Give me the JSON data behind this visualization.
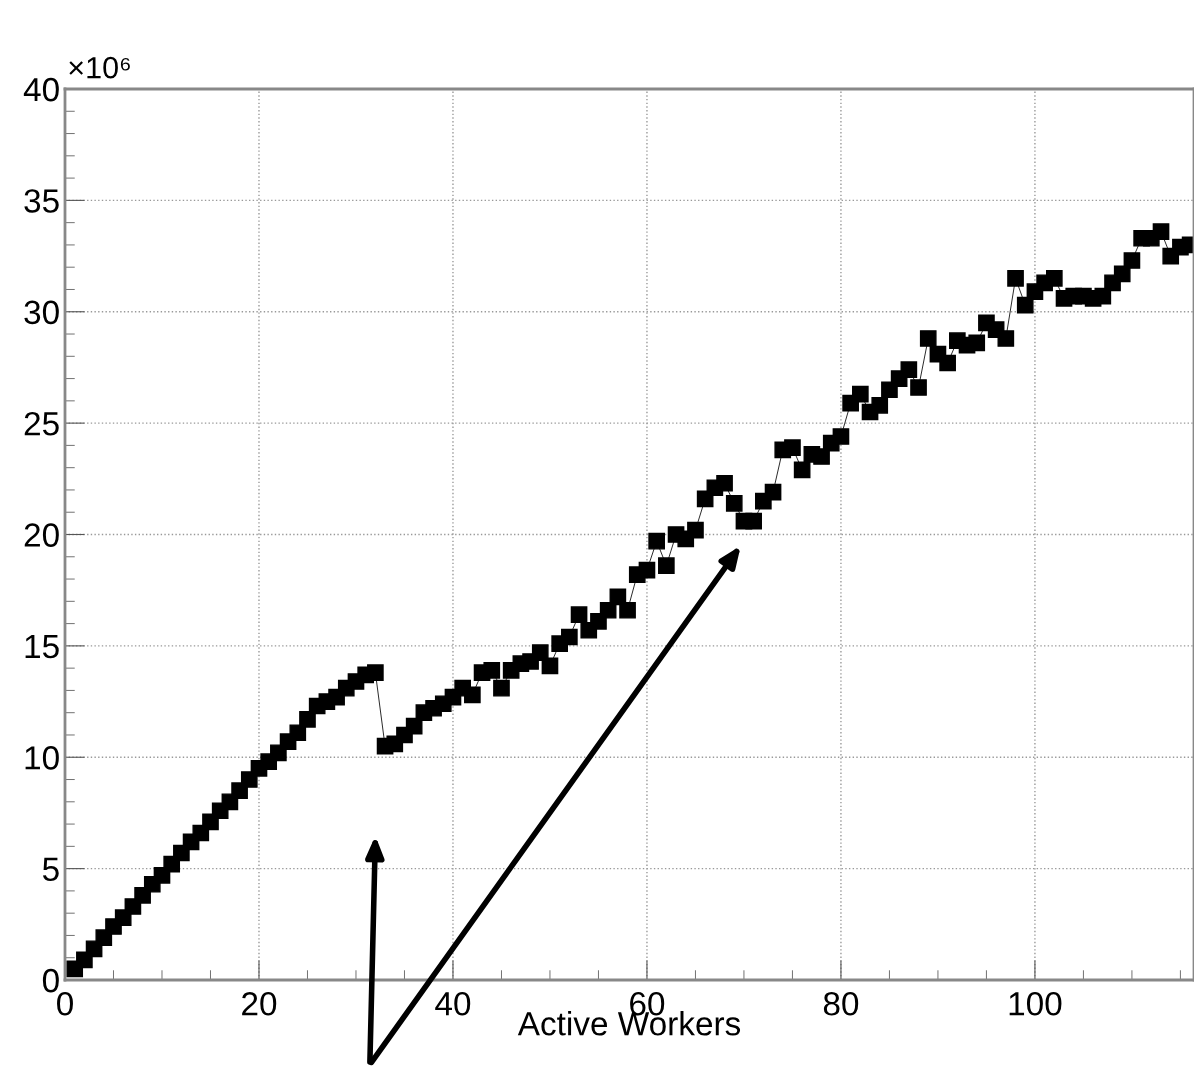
{
  "chart_data": {
    "type": "line",
    "xlabel": "Active Workers",
    "annotations": [
      "×10⁶"
    ],
    "x": [
      1,
      2,
      3,
      4,
      5,
      6,
      7,
      8,
      9,
      10,
      11,
      12,
      13,
      14,
      15,
      16,
      17,
      18,
      19,
      20,
      21,
      22,
      23,
      24,
      25,
      26,
      27,
      28,
      29,
      30,
      31,
      32,
      33,
      34,
      35,
      36,
      37,
      38,
      39,
      40,
      41,
      42,
      43,
      44,
      45,
      46,
      47,
      48,
      49,
      50,
      51,
      52,
      53,
      54,
      55,
      56,
      57,
      58,
      59,
      60,
      61,
      62,
      63,
      64,
      65,
      66,
      67,
      68,
      69,
      70,
      71,
      72,
      73,
      74,
      75,
      76,
      77,
      78,
      79,
      80,
      81,
      82,
      83,
      84,
      85,
      86,
      87,
      88,
      89,
      90,
      91,
      92,
      93,
      94,
      95,
      96,
      97,
      98,
      99,
      100,
      101,
      102,
      103,
      104,
      105,
      106,
      107,
      108,
      109,
      110,
      111,
      112,
      113,
      114,
      115,
      116
    ],
    "series": [
      {
        "color": "#000000",
        "values": [
          0.5,
          0.9,
          1.4,
          1.9,
          2.4,
          2.8,
          3.3,
          3.8,
          4.3,
          4.7,
          5.2,
          5.7,
          6.2,
          6.6,
          7.1,
          7.6,
          8.0,
          8.5,
          9.0,
          9.5,
          9.8,
          10.2,
          10.7,
          11.1,
          11.7,
          12.3,
          12.5,
          12.7,
          13.1,
          13.4,
          13.7,
          13.8,
          10.5,
          10.6,
          11.0,
          11.4,
          12.0,
          12.2,
          12.4,
          12.7,
          13.1,
          12.8,
          13.8,
          13.9,
          13.1,
          13.9,
          14.2,
          14.3,
          14.7,
          14.1,
          15.1,
          15.4,
          16.4,
          15.7,
          16.1,
          16.6,
          17.2,
          16.6,
          18.2,
          18.4,
          19.7,
          18.6,
          20.0,
          19.8,
          20.2,
          21.6,
          22.1,
          22.3,
          21.4,
          20.6,
          20.6,
          21.5,
          21.9,
          23.8,
          23.9,
          22.9,
          23.6,
          23.5,
          24.1,
          24.4,
          25.9,
          26.3,
          25.5,
          25.8,
          26.5,
          27.0,
          27.4,
          26.6,
          28.8,
          28.1,
          27.7,
          28.7,
          28.5,
          28.6,
          29.5,
          29.2,
          28.8,
          31.5,
          30.3,
          30.9,
          31.3,
          31.5,
          30.6,
          30.7,
          30.7,
          30.6,
          30.7,
          31.3,
          31.7,
          32.3,
          33.3,
          33.3,
          33.6,
          32.5,
          32.9,
          33.0
        ]
      }
    ],
    "marker": "square",
    "grid": true,
    "xlim": [
      0,
      116.4
    ],
    "xticks": [
      0,
      20,
      40,
      60,
      80,
      100
    ],
    "ylim": [
      0,
      40
    ],
    "yticks": [
      0,
      5,
      10,
      15,
      20,
      25,
      30,
      35,
      40
    ]
  }
}
